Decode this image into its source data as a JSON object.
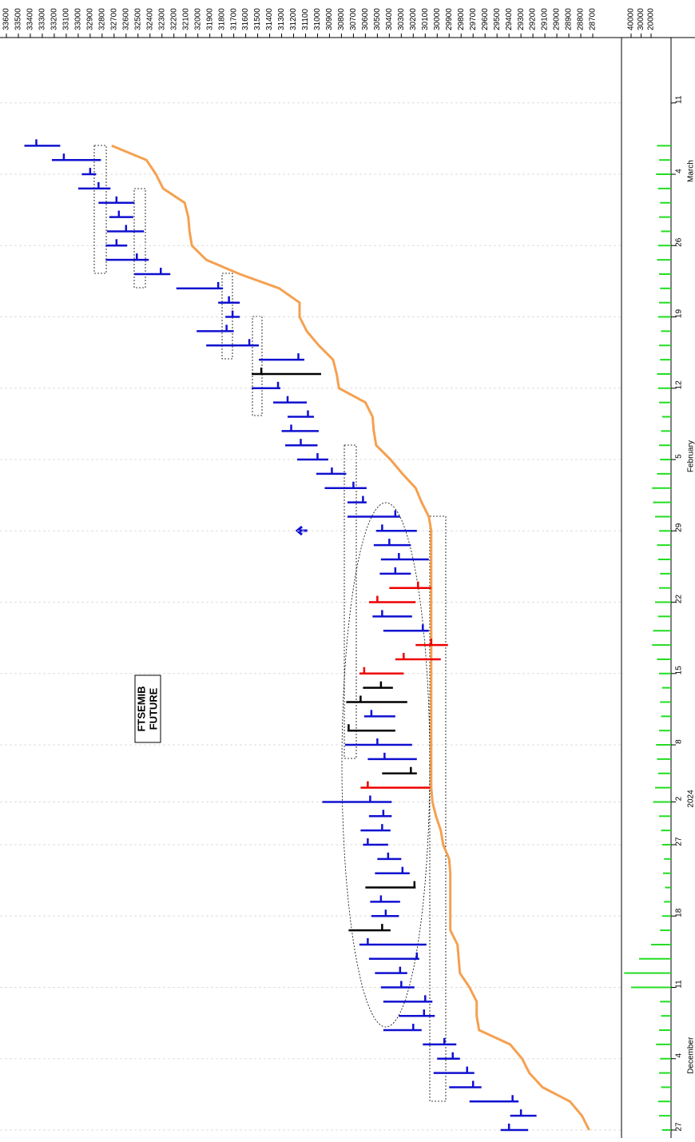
{
  "chart_data": {
    "type": "ohlc",
    "title_lines": [
      "FTSEMIB",
      "FUTURE"
    ],
    "categories": [
      "27",
      null,
      null,
      null,
      null,
      "4",
      null,
      null,
      null,
      null,
      "11",
      null,
      null,
      null,
      null,
      "18",
      null,
      null,
      null,
      null,
      "27",
      null,
      null,
      "2",
      null,
      null,
      null,
      "8",
      null,
      null,
      null,
      null,
      "15",
      null,
      null,
      null,
      null,
      "22",
      null,
      null,
      null,
      null,
      "29",
      null,
      null,
      null,
      null,
      "5",
      null,
      null,
      null,
      null,
      "12",
      null,
      null,
      null,
      null,
      "19",
      null,
      null,
      null,
      null,
      "26",
      null,
      null,
      null,
      null,
      "4",
      null,
      null,
      null,
      null,
      "11"
    ],
    "period_labels": [
      {
        "text": "December",
        "category": 5
      },
      {
        "text": "2024",
        "category": 23
      },
      {
        "text": "February",
        "category": 47
      },
      {
        "text": "March",
        "category": 67
      }
    ],
    "high": [
      29470,
      29390,
      29730,
      29900,
      30030,
      30000,
      30120,
      30450,
      30320,
      30450,
      30470,
      30520,
      30570,
      30650,
      30740,
      30550,
      30560,
      30600,
      30520,
      30500,
      30620,
      30640,
      30570,
      30960,
      30640,
      30460,
      30580,
      30770,
      30750,
      30610,
      30760,
      30620,
      30650,
      30350,
      30180,
      30450,
      30540,
      30570,
      30400,
      30480,
      30470,
      30530,
      30510,
      30750,
      30750,
      30940,
      31010,
      31170,
      31270,
      31300,
      31250,
      31370,
      31550,
      31550,
      31490,
      31930,
      32010,
      31770,
      31830,
      32180,
      32530,
      32770,
      32770,
      32760,
      32740,
      32830,
      33000,
      32970,
      33220,
      33450,
      null,
      null,
      null
    ],
    "low": [
      29240,
      29170,
      29320,
      29630,
      29690,
      29810,
      29840,
      30130,
      30020,
      30040,
      30190,
      30250,
      30150,
      30090,
      30390,
      30320,
      30310,
      30180,
      30230,
      30300,
      30410,
      30390,
      30380,
      30380,
      30060,
      30170,
      30170,
      30210,
      30350,
      30350,
      30250,
      30370,
      30280,
      29970,
      29910,
      30070,
      30210,
      30180,
      30050,
      30220,
      30070,
      30220,
      30170,
      30310,
      30590,
      30590,
      30760,
      30910,
      31000,
      30990,
      31030,
      31090,
      31310,
      30970,
      31110,
      31490,
      31700,
      31650,
      31650,
      31790,
      32230,
      32410,
      32590,
      32450,
      32540,
      32530,
      32730,
      32850,
      32810,
      33150,
      null,
      null,
      null
    ],
    "close": [
      29400,
      29300,
      29370,
      29700,
      29750,
      29870,
      29940,
      30200,
      30110,
      30100,
      30300,
      30310,
      30170,
      30580,
      30460,
      30430,
      30470,
      30190,
      30290,
      30410,
      30580,
      30460,
      30450,
      30560,
      30580,
      30220,
      30440,
      30500,
      30740,
      30550,
      30640,
      30470,
      30610,
      30280,
      30050,
      30120,
      30460,
      30500,
      30160,
      30350,
      30320,
      30400,
      30460,
      30350,
      30620,
      30700,
      30880,
      31000,
      31140,
      31220,
      31080,
      31250,
      31330,
      31470,
      31160,
      31570,
      31760,
      31710,
      31740,
      31830,
      32310,
      32510,
      32680,
      32600,
      32660,
      32680,
      32830,
      32900,
      33120,
      33350,
      null,
      null,
      null
    ],
    "bar_colors": [
      "#1010d0",
      "#1010d0",
      "#1010d0",
      "#1010d0",
      "#1010d0",
      "#1010d0",
      "#1010d0",
      "#1010d0",
      "#1010d0",
      "#1010d0",
      "#1010d0",
      "#1010d0",
      "#1010d0",
      "#1010d0",
      "#000000",
      "#1010d0",
      "#1010d0",
      "#000000",
      "#1010d0",
      "#1010d0",
      "#1010d0",
      "#1010d0",
      "#1010d0",
      "#1010d0",
      "#ee0000",
      "#000000",
      "#1010d0",
      "#1010d0",
      "#000000",
      "#1010d0",
      "#000000",
      "#000000",
      "#ee0000",
      "#ee0000",
      "#ee0000",
      "#1010d0",
      "#1010d0",
      "#ee0000",
      "#ee0000",
      "#1010d0",
      "#1010d0",
      "#1010d0",
      "#1010d0",
      "#1010d0",
      "#1010d0",
      "#1010d0",
      "#1010d0",
      "#1010d0",
      "#1010d0",
      "#1010d0",
      "#1010d0",
      "#1010d0",
      "#1010d0",
      "#000000",
      "#1010d0",
      "#1010d0",
      "#1010d0",
      "#1010d0",
      "#1010d0",
      "#1010d0",
      "#1010d0",
      "#1010d0",
      "#1010d0",
      "#1010d0",
      "#1010d0",
      "#1010d0",
      "#1010d0",
      "#1010d0",
      "#1010d0",
      "#1010d0",
      null,
      null,
      null
    ],
    "moving_average": {
      "color": "#f5a050",
      "values": [
        28730,
        28790,
        28890,
        29120,
        29230,
        29290,
        29390,
        29650,
        29670,
        29670,
        29730,
        29810,
        29820,
        29830,
        29890,
        29890,
        29890,
        29890,
        29890,
        29900,
        29950,
        29970,
        30010,
        30040,
        30050,
        30050,
        30050,
        30050,
        30050,
        30050,
        30050,
        30050,
        30050,
        30050,
        30050,
        30050,
        30050,
        30050,
        30050,
        30050,
        30050,
        30050,
        30050,
        30070,
        30130,
        30180,
        30290,
        30390,
        30510,
        30530,
        30540,
        30600,
        30820,
        30840,
        30870,
        30990,
        31090,
        31150,
        31150,
        31320,
        31650,
        31930,
        32050,
        32070,
        32080,
        32110,
        32290,
        32350,
        32430,
        32720,
        null,
        null,
        null
      ]
    },
    "volume": {
      "color": "#22dd22",
      "xlim": [
        0,
        48000
      ],
      "xticks": [
        20000,
        30000,
        40000
      ],
      "values": [
        9000,
        12000,
        13000,
        10000,
        12000,
        11000,
        15000,
        12000,
        10000,
        11000,
        40000,
        47000,
        32000,
        20000,
        11000,
        9000,
        7000,
        6000,
        8000,
        7000,
        9000,
        10000,
        12000,
        18000,
        16000,
        13000,
        14000,
        15000,
        12000,
        10000,
        11000,
        9000,
        12000,
        14000,
        19000,
        18000,
        13000,
        16000,
        12000,
        11000,
        13000,
        14000,
        12000,
        16000,
        18000,
        19000,
        14000,
        11000,
        12000,
        10000,
        9000,
        12000,
        13000,
        14000,
        11000,
        12000,
        10000,
        13000,
        12000,
        11000,
        12000,
        14000,
        13000,
        10000,
        12000,
        11000,
        13000,
        15000,
        12000,
        14000,
        null,
        null,
        null
      ]
    },
    "ylim": [
      33600,
      28700
    ],
    "yticks": [
      33600,
      33500,
      33400,
      33300,
      33200,
      33100,
      33000,
      32900,
      32800,
      32700,
      32600,
      32500,
      32400,
      32300,
      32200,
      32100,
      32000,
      31900,
      31800,
      31700,
      31600,
      31500,
      31400,
      31300,
      31200,
      31100,
      31000,
      30900,
      30800,
      30700,
      30600,
      30500,
      30400,
      30300,
      30200,
      30100,
      30000,
      29900,
      29800,
      29700,
      29600,
      29500,
      29400,
      29300,
      29200,
      29100,
      29000,
      28900,
      28800,
      28700
    ],
    "grid": true
  }
}
